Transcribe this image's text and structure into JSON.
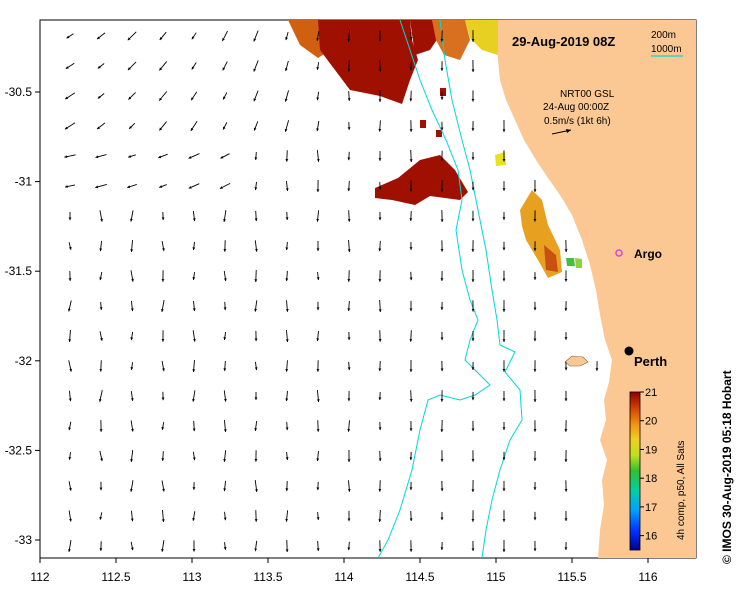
{
  "title": "29-Aug-2019 08Z",
  "isobath_legend": {
    "shallow_label": "200m",
    "deep_label": "1000m",
    "line_color": "#00d8d8"
  },
  "current_legend": {
    "source": "NRT00 GSL",
    "date": "24-Aug 00:00Z",
    "scale": "0.5m/s (1kt 6h)"
  },
  "locations": [
    {
      "name": "Argo",
      "marker": "magenta-circle-icon",
      "color": "#e040e0",
      "lon": 115.83,
      "lat": -31.45
    },
    {
      "name": "Perth",
      "marker": "black-dot-icon",
      "color": "#000000",
      "lon": 115.87,
      "lat": -31.95
    }
  ],
  "x_ticks": [
    "112",
    "112.5",
    "113",
    "113.5",
    "114",
    "114.5",
    "115",
    "115.5",
    "116"
  ],
  "y_ticks": [
    "-30.5",
    "-31",
    "-31.5",
    "-32",
    "-32.5",
    "-33"
  ],
  "colorbar": {
    "ticks": [
      "21",
      "20",
      "19",
      "18",
      "17",
      "16"
    ],
    "label": "4h comp, p50, All Sats",
    "min": 15.5,
    "max": 21
  },
  "credit": "© IMOS 30-Aug-2019 05:18 Hobart",
  "colors": {
    "land": "#fbc894",
    "sst_hot": "#a01000",
    "sst_warm": "#d86010",
    "sst_mid": "#f0a020",
    "sst_yellow": "#e8e020",
    "sst_green": "#40c040"
  }
}
